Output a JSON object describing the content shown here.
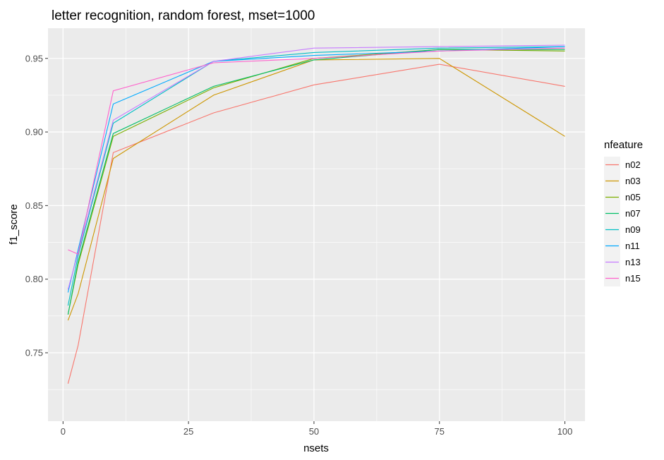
{
  "chart_data": {
    "type": "line",
    "title": "letter recognition, random forest, mset=1000",
    "xlabel": "nsets",
    "ylabel": "f1_score",
    "xlim": [
      -3,
      104
    ],
    "ylim": [
      0.7035,
      0.9705
    ],
    "x_ticks": [
      0,
      25,
      50,
      75,
      100
    ],
    "x_tick_labels": [
      "0",
      "25",
      "50",
      "75",
      "100"
    ],
    "y_ticks": [
      0.75,
      0.8,
      0.85,
      0.9,
      0.95
    ],
    "y_tick_labels": [
      "0.75",
      "0.80",
      "0.85",
      "0.90",
      "0.95"
    ],
    "grid": true,
    "legend_title": "nfeature",
    "legend_position": "right",
    "x": [
      1,
      3,
      10,
      30,
      50,
      75,
      100
    ],
    "series": [
      {
        "name": "n02",
        "color": "#F8766D",
        "values": [
          0.729,
          0.755,
          0.886,
          0.913,
          0.932,
          0.946,
          0.931
        ]
      },
      {
        "name": "n03",
        "color": "#CD9600",
        "values": [
          0.772,
          0.79,
          0.882,
          0.925,
          0.949,
          0.95,
          0.897
        ]
      },
      {
        "name": "n05",
        "color": "#7CAE00",
        "values": [
          0.776,
          0.81,
          0.897,
          0.93,
          0.95,
          0.956,
          0.955
        ]
      },
      {
        "name": "n07",
        "color": "#00BE67",
        "values": [
          0.776,
          0.812,
          0.899,
          0.931,
          0.949,
          0.956,
          0.956
        ]
      },
      {
        "name": "n09",
        "color": "#00BFC4",
        "values": [
          0.782,
          0.816,
          0.906,
          0.948,
          0.954,
          0.957,
          0.958
        ]
      },
      {
        "name": "n11",
        "color": "#00A9FF",
        "values": [
          0.791,
          0.82,
          0.919,
          0.948,
          0.952,
          0.955,
          0.958
        ]
      },
      {
        "name": "n13",
        "color": "#C77CFF",
        "values": [
          0.793,
          0.818,
          0.908,
          0.948,
          0.957,
          0.958,
          0.959
        ]
      },
      {
        "name": "n15",
        "color": "#FF61CC",
        "values": [
          0.82,
          0.817,
          0.928,
          0.947,
          0.95,
          0.955,
          0.957
        ]
      }
    ]
  },
  "colors": {
    "panel_background": "#EBEBEB",
    "grid_major": "#FFFFFF",
    "tick_text": "#4D4D4D"
  }
}
